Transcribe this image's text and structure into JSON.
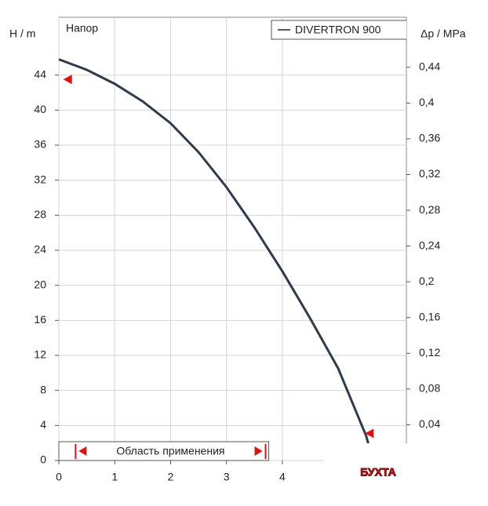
{
  "chart_data": {
    "type": "line",
    "title": "Напор",
    "y_label": "H / m",
    "y2_label": "Δp / MPa",
    "x": [
      0,
      0.5,
      1,
      1.5,
      2,
      2.5,
      3,
      3.5,
      4,
      4.5,
      5,
      5.5,
      5.6
    ],
    "series": [
      {
        "name": "DIVERTRON 900",
        "color": "#2f3a4a",
        "values": [
          45.8,
          44.6,
          43.0,
          41.0,
          38.5,
          35.2,
          31.2,
          26.6,
          21.6,
          16.2,
          10.5,
          2.8,
          0.5
        ]
      }
    ],
    "xlim": [
      0,
      6.22
    ],
    "xticks": [
      0,
      1,
      2,
      3,
      4
    ],
    "ylim": [
      0,
      50.6
    ],
    "yticks": [
      0,
      4,
      8,
      12,
      16,
      20,
      24,
      28,
      32,
      36,
      40,
      44
    ],
    "y2lim": [
      0,
      0.496
    ],
    "y2ticks": [
      {
        "value": 0.04,
        "label": "0,04"
      },
      {
        "value": 0.08,
        "label": "0,08"
      },
      {
        "value": 0.12,
        "label": "0,12"
      },
      {
        "value": 0.16,
        "label": "0,16"
      },
      {
        "value": 0.2,
        "label": "0,2"
      },
      {
        "value": 0.24,
        "label": "0,24"
      },
      {
        "value": 0.28,
        "label": "0,28"
      },
      {
        "value": 0.32,
        "label": "0,32"
      },
      {
        "value": 0.36,
        "label": "0,36"
      },
      {
        "value": 0.4,
        "label": "0,4"
      },
      {
        "value": 0.44,
        "label": "0,44"
      }
    ],
    "grid": true,
    "markers": [
      {
        "x": 0.15,
        "y": 43.5
      },
      {
        "x": 5.55,
        "y": 3.1
      }
    ],
    "marker_color": "#e01010",
    "range": {
      "label": "Область применения",
      "from": 0.3,
      "to": 3.7
    },
    "logo": "БУХТА"
  }
}
